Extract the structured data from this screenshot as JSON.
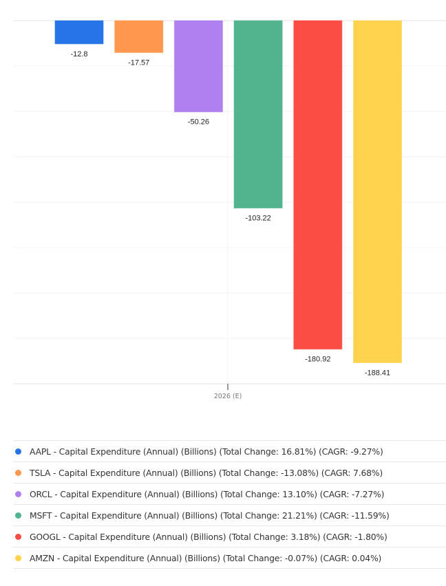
{
  "chart_data": {
    "type": "bar",
    "categories": [
      "2026 (E)"
    ],
    "series": [
      {
        "name": "AAPL - Capital Expenditure (Annual) (Billions) (Total Change: 16.81%) (CAGR: -9.27%)",
        "ticker": "AAPL",
        "values": [
          -12.8
        ],
        "label": "-12.8",
        "color": "#2774e8"
      },
      {
        "name": "TSLA - Capital Expenditure (Annual) (Billions) (Total Change: -13.08%) (CAGR: 7.68%)",
        "ticker": "TSLA",
        "values": [
          -17.57
        ],
        "label": "-17.57",
        "color": "#ff984e"
      },
      {
        "name": "ORCL - Capital Expenditure (Annual) (Billions) (Total Change: 13.10%) (CAGR: -7.27%)",
        "ticker": "ORCL",
        "values": [
          -50.26
        ],
        "label": "-50.26",
        "color": "#b07ff0"
      },
      {
        "name": "MSFT - Capital Expenditure (Annual) (Billions) (Total Change: 21.21%) (CAGR: -11.59%)",
        "ticker": "MSFT",
        "values": [
          -103.22
        ],
        "label": "-103.22",
        "color": "#52b48f"
      },
      {
        "name": "GOOGL - Capital Expenditure (Annual) (Billions) (Total Change: 3.18%) (CAGR: -1.80%)",
        "ticker": "GOOGL",
        "values": [
          -180.92
        ],
        "label": "-180.92",
        "color": "#fb4d44"
      },
      {
        "name": "AMZN - Capital Expenditure (Annual) (Billions) (Total Change: -0.07%) (CAGR: 0.04%)",
        "ticker": "AMZN",
        "values": [
          -188.41
        ],
        "label": "-188.41",
        "color": "#ffd34d"
      }
    ],
    "title": "",
    "xlabel": "",
    "ylabel": "",
    "ylim": [
      -200,
      0
    ],
    "grid_step": 25,
    "grid": true,
    "legend_position": "bottom"
  }
}
